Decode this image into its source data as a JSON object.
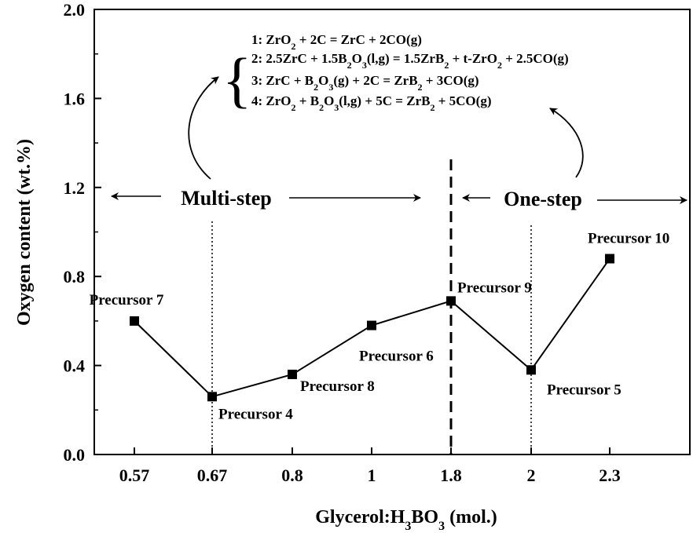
{
  "chart_data": {
    "type": "line",
    "xlabel": "Glycerol:H3BO3 (mol.)",
    "ylabel": "Oxygen content (wt.%)",
    "categories": [
      "0.57",
      "0.67",
      "0.8",
      "1",
      "1.8",
      "2",
      "2.3"
    ],
    "ylim": [
      0,
      2.0
    ],
    "yticks": [
      "0.0",
      "0.4",
      "0.8",
      "1.2",
      "1.6",
      "2.0"
    ],
    "grid": false,
    "legend": "none",
    "series": [
      {
        "values": [
          0.6,
          0.26,
          0.36,
          0.58,
          0.69,
          0.38,
          0.88
        ],
        "labels": [
          "Precursor 7",
          "Precursor 4",
          "Precursor 8",
          "Precursor 6",
          "Precursor 9",
          "Precursor 5",
          "Precursor 10"
        ]
      }
    ],
    "annotations": {
      "multi_step": "Multi-step",
      "one_step": "One-step",
      "reactions": [
        "1: ZrO2 + 2C = ZrC + 2CO(g)",
        "2: 2.5ZrC + 1.5B2O3(l,g) = 1.5ZrB2 + t-ZrO2 + 2.5CO(g)",
        "3: ZrC + B2O3(g) + 2C = ZrB2 + 3CO(g)",
        "4: ZrO2 + B2O3(l,g) + 5C = ZrB2 + 5CO(g)"
      ]
    }
  }
}
